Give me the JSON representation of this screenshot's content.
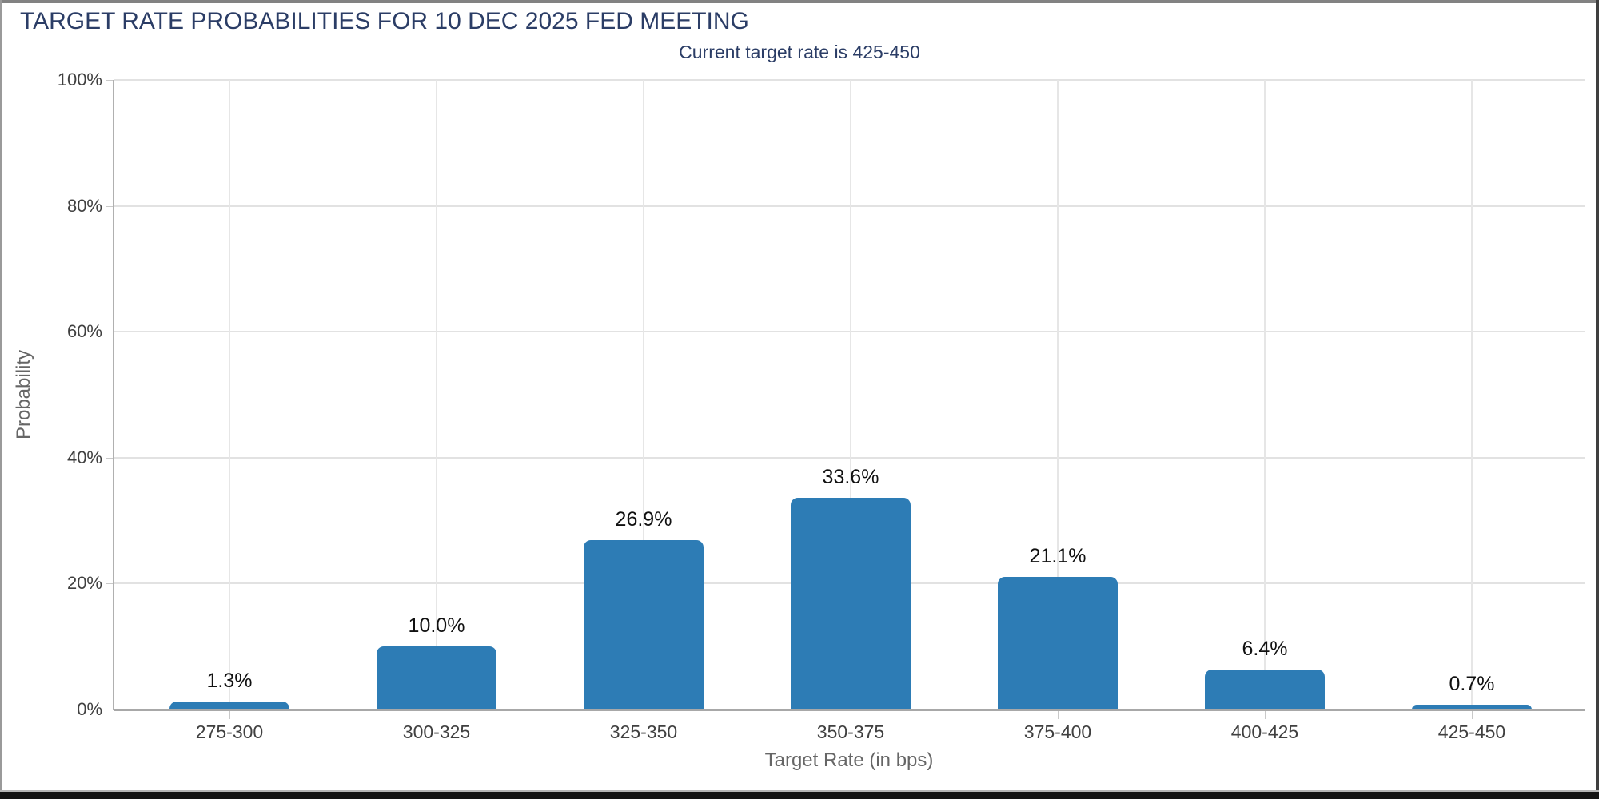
{
  "header": {
    "title": "TARGET RATE PROBABILITIES FOR 10 DEC 2025 FED MEETING",
    "subtitle": "Current target rate is 425-450"
  },
  "chart_data": {
    "type": "bar",
    "title": "TARGET RATE PROBABILITIES FOR 10 DEC 2025 FED MEETING",
    "subtitle": "Current target rate is 425-450",
    "categories": [
      "275-300",
      "300-325",
      "325-350",
      "350-375",
      "375-400",
      "400-425",
      "425-450"
    ],
    "values": [
      1.3,
      10.0,
      26.9,
      33.6,
      21.1,
      6.4,
      0.7
    ],
    "value_labels": [
      "1.3%",
      "10.0%",
      "26.9%",
      "33.6%",
      "21.1%",
      "6.4%",
      "0.7%"
    ],
    "xlabel": "Target Rate (in bps)",
    "ylabel": "Probability",
    "ylim": [
      0,
      100
    ],
    "yticks": [
      0,
      20,
      40,
      60,
      80,
      100
    ],
    "ytick_labels": [
      "0%",
      "20%",
      "40%",
      "60%",
      "80%",
      "100%"
    ],
    "grid": true,
    "legend": false,
    "colors": {
      "bar": "#2d7cb5",
      "title": "#2b3d66",
      "axis_title": "#666666",
      "tick_label": "#404040",
      "gridline": "#e2e2e2",
      "axis_line": "#a8a8a8",
      "value_label": "#111111"
    }
  }
}
